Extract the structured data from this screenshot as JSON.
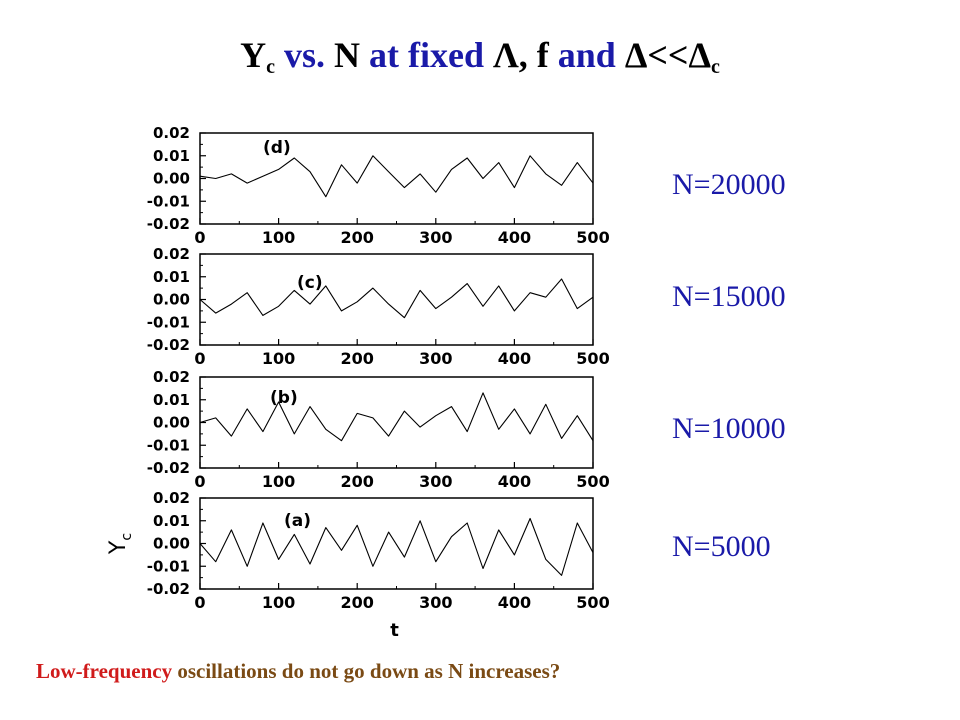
{
  "title": {
    "y_symbol": "Y",
    "y_sub": "c",
    "vs": "vs.",
    "n": "N",
    "at_fixed": "at fixed",
    "lambda": "Λ",
    "comma_f": ", f",
    "and": "and",
    "delta": "Δ",
    "ll": "<<",
    "delta_c": "Δ",
    "delta_c_sub": "c"
  },
  "colors": {
    "blue": "#1a1aa8",
    "red": "#d01b1b",
    "brown": "#7a4a14"
  },
  "footer": {
    "highlight": "Low-frequency",
    "rest": "oscillations do not go down as N increases?"
  },
  "chart_data": [
    {
      "type": "line",
      "panel_label": "(d)",
      "annotation": "N=20000",
      "xlabel": "",
      "ylabel": "",
      "xlim": [
        0,
        500
      ],
      "ylim": [
        -0.02,
        0.02
      ],
      "xticks": [
        "0",
        "100",
        "200",
        "300",
        "400",
        "500"
      ],
      "yticks": [
        "0.02",
        "0.01",
        "0.00",
        "-0.01",
        "-0.02"
      ],
      "grid": false,
      "x": [
        0,
        20,
        40,
        60,
        80,
        100,
        120,
        140,
        160,
        180,
        200,
        220,
        240,
        260,
        280,
        300,
        320,
        340,
        360,
        380,
        400,
        420,
        440,
        460,
        480,
        500
      ],
      "values": [
        0.001,
        0.0,
        0.002,
        -0.002,
        0.001,
        0.004,
        0.009,
        0.003,
        -0.008,
        0.006,
        -0.002,
        0.01,
        0.003,
        -0.004,
        0.002,
        -0.006,
        0.004,
        0.009,
        0.0,
        0.007,
        -0.004,
        0.01,
        0.002,
        -0.003,
        0.007,
        -0.002
      ]
    },
    {
      "type": "line",
      "panel_label": "(c)",
      "annotation": "N=15000",
      "xlabel": "",
      "ylabel": "",
      "xlim": [
        0,
        500
      ],
      "ylim": [
        -0.02,
        0.02
      ],
      "xticks": [
        "0",
        "100",
        "200",
        "300",
        "400",
        "500"
      ],
      "yticks": [
        "0.02",
        "0.01",
        "0.00",
        "-0.01",
        "-0.02"
      ],
      "grid": false,
      "x": [
        0,
        20,
        40,
        60,
        80,
        100,
        120,
        140,
        160,
        180,
        200,
        220,
        240,
        260,
        280,
        300,
        320,
        340,
        360,
        380,
        400,
        420,
        440,
        460,
        480,
        500
      ],
      "values": [
        0.0,
        -0.006,
        -0.002,
        0.003,
        -0.007,
        -0.003,
        0.004,
        -0.002,
        0.006,
        -0.005,
        -0.001,
        0.005,
        -0.002,
        -0.008,
        0.004,
        -0.004,
        0.001,
        0.007,
        -0.003,
        0.006,
        -0.005,
        0.003,
        0.001,
        0.009,
        -0.004,
        0.001
      ]
    },
    {
      "type": "line",
      "panel_label": "(b)",
      "annotation": "N=10000",
      "xlabel": "",
      "ylabel": "",
      "xlim": [
        0,
        500
      ],
      "ylim": [
        -0.02,
        0.02
      ],
      "xticks": [
        "0",
        "100",
        "200",
        "300",
        "400",
        "500"
      ],
      "yticks": [
        "0.02",
        "0.01",
        "0.00",
        "-0.01",
        "-0.02"
      ],
      "grid": false,
      "x": [
        0,
        20,
        40,
        60,
        80,
        100,
        120,
        140,
        160,
        180,
        200,
        220,
        240,
        260,
        280,
        300,
        320,
        340,
        360,
        380,
        400,
        420,
        440,
        460,
        480,
        500
      ],
      "values": [
        0.0,
        0.002,
        -0.006,
        0.006,
        -0.004,
        0.009,
        -0.005,
        0.007,
        -0.003,
        -0.008,
        0.004,
        0.002,
        -0.006,
        0.005,
        -0.002,
        0.003,
        0.007,
        -0.004,
        0.013,
        -0.003,
        0.006,
        -0.005,
        0.008,
        -0.007,
        0.003,
        -0.008
      ]
    },
    {
      "type": "line",
      "panel_label": "(a)",
      "annotation": "N=5000",
      "xlabel": "t",
      "ylabel": "Y_c",
      "xlim": [
        0,
        500
      ],
      "ylim": [
        -0.02,
        0.02
      ],
      "xticks": [
        "0",
        "100",
        "200",
        "300",
        "400",
        "500"
      ],
      "yticks": [
        "0.02",
        "0.01",
        "0.00",
        "-0.01",
        "-0.02"
      ],
      "grid": false,
      "x": [
        0,
        20,
        40,
        60,
        80,
        100,
        120,
        140,
        160,
        180,
        200,
        220,
        240,
        260,
        280,
        300,
        320,
        340,
        360,
        380,
        400,
        420,
        440,
        460,
        480,
        500
      ],
      "values": [
        0.0,
        -0.008,
        0.006,
        -0.01,
        0.009,
        -0.007,
        0.004,
        -0.009,
        0.007,
        -0.003,
        0.008,
        -0.01,
        0.005,
        -0.006,
        0.01,
        -0.008,
        0.003,
        0.009,
        -0.011,
        0.006,
        -0.005,
        0.011,
        -0.007,
        -0.014,
        0.009,
        -0.004
      ]
    }
  ]
}
